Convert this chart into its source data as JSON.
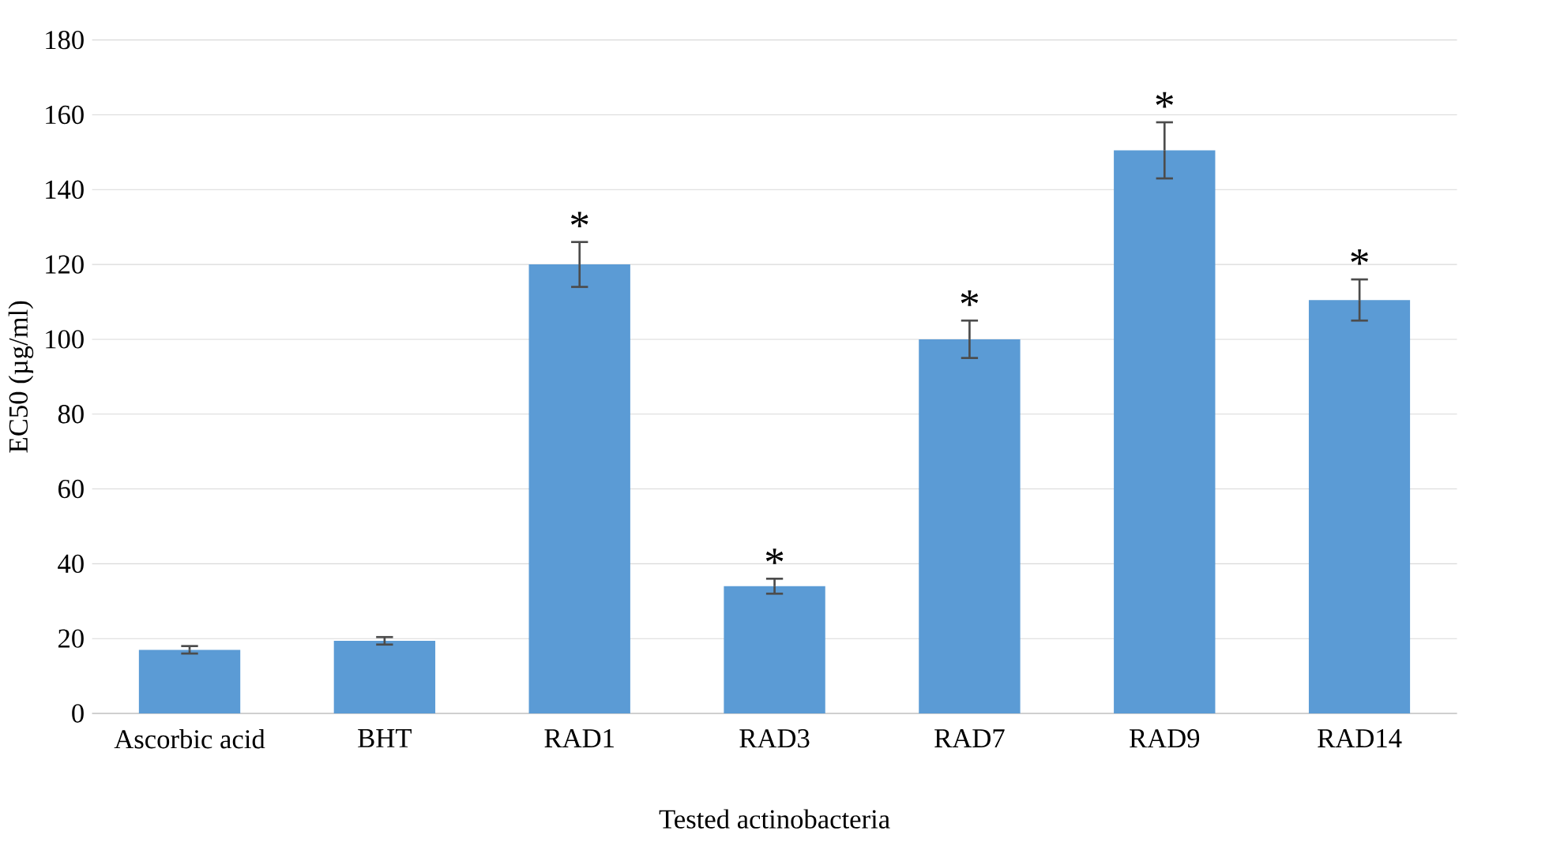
{
  "chart_data": {
    "type": "bar",
    "xlabel": "Tested actinobacteria",
    "ylabel": "EC50 (µg/ml)",
    "categories": [
      "Ascorbic acid",
      "BHT",
      "RAD1",
      "RAD3",
      "RAD7",
      "RAD9",
      "RAD14"
    ],
    "values": [
      17,
      19.4,
      120,
      34,
      100,
      150.5,
      110.5
    ],
    "errors": [
      1,
      1,
      6,
      2,
      5,
      7.5,
      5.5
    ],
    "color": "#5b9bd5",
    "ylim": [
      0,
      180
    ],
    "yticks": [
      0,
      20,
      40,
      60,
      80,
      100,
      120,
      140,
      160,
      180
    ],
    "grid": "y",
    "annotations": [
      {
        "text": "*",
        "x": "RAD1",
        "y": 126
      },
      {
        "text": "*",
        "x": "RAD3",
        "y": 36
      },
      {
        "text": "*",
        "x": "RAD7",
        "y": 105
      },
      {
        "text": "*",
        "x": "RAD9",
        "y": 158
      },
      {
        "text": "*",
        "x": "RAD14",
        "y": 116
      }
    ]
  }
}
